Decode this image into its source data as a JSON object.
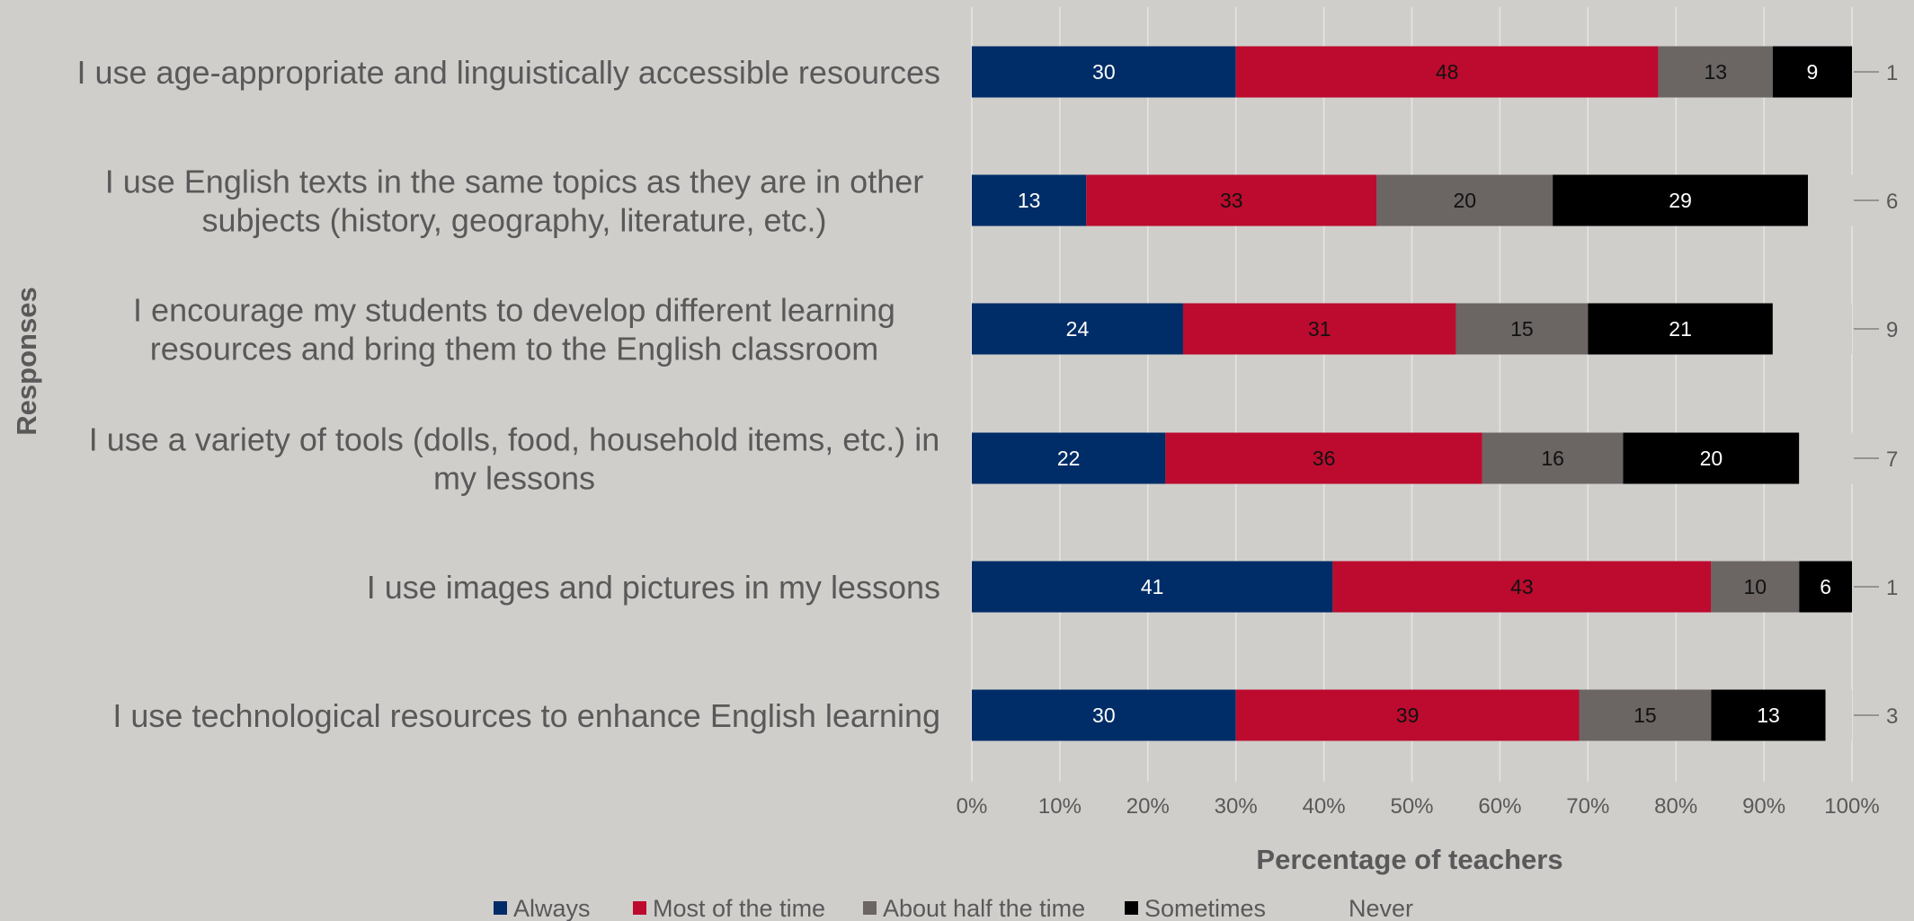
{
  "colors": {
    "background": "#d0cecb",
    "text": "#595959",
    "gridline": "#e6e5e3",
    "series": [
      "#002d67",
      "#bc0b2e",
      "#6b6564",
      "#000000",
      "#d0cecb"
    ],
    "label_light": "#ffffff",
    "label_dark": "#111111"
  },
  "chart_data": {
    "type": "bar",
    "orientation": "horizontal",
    "stacked": "percent",
    "xlabel": "Percentage of teachers",
    "ylabel": "Responses",
    "xlim": [
      0,
      100
    ],
    "x_ticks": [
      "0%",
      "10%",
      "20%",
      "30%",
      "40%",
      "50%",
      "60%",
      "70%",
      "80%",
      "90%",
      "100%"
    ],
    "grid": "vertical",
    "legend_position": "bottom",
    "categories": [
      "I use age-appropriate and linguistically accessible resources",
      "I use English texts in the same topics as they are in other subjects (history, geography, literature, etc.)",
      "I encourage my students to develop different learning resources and bring them to the English classroom",
      "I use a variety of tools (dolls, food, household items, etc.) in my lessons",
      "I use images and pictures in my lessons",
      "I use technological resources to enhance English learning"
    ],
    "series": [
      {
        "name": "Always",
        "values": [
          30,
          13,
          24,
          22,
          41,
          30
        ]
      },
      {
        "name": "Most of the time",
        "values": [
          48,
          33,
          31,
          36,
          43,
          39
        ]
      },
      {
        "name": "About half the time",
        "values": [
          13,
          20,
          15,
          16,
          10,
          15
        ]
      },
      {
        "name": "Sometimes",
        "values": [
          9,
          29,
          21,
          20,
          6,
          13
        ]
      },
      {
        "name": "Never",
        "values": [
          1,
          6,
          9,
          7,
          1,
          3
        ]
      }
    ]
  }
}
